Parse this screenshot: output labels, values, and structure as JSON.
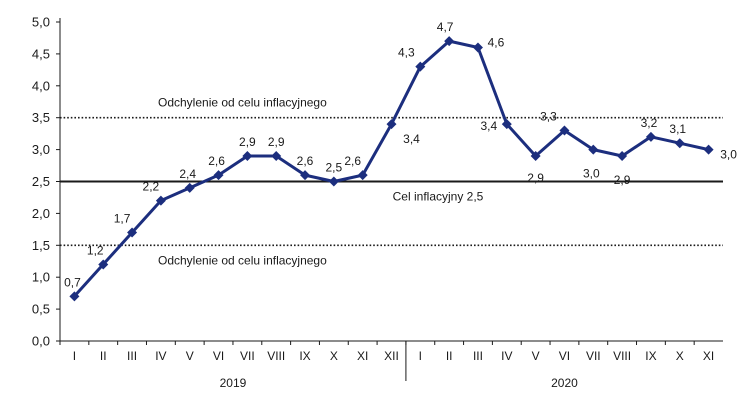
{
  "chart_data": {
    "type": "line",
    "title": "",
    "xlabel": "",
    "ylabel": "",
    "ylim": [
      0,
      5
    ],
    "y_ticks": [
      "0,0",
      "0,5",
      "1,0",
      "1,5",
      "2,0",
      "2,5",
      "3,0",
      "3,5",
      "4,0",
      "4,5",
      "5,0"
    ],
    "grid": false,
    "categories": [
      "I",
      "II",
      "III",
      "IV",
      "V",
      "VI",
      "VII",
      "VIII",
      "IX",
      "X",
      "XI",
      "XII",
      "I",
      "II",
      "III",
      "IV",
      "V",
      "VI",
      "VII",
      "VIII",
      "IX",
      "X",
      "XI"
    ],
    "years": [
      "2019",
      "2020"
    ],
    "series": [
      {
        "color": "#1c2e7e",
        "values": [
          0.7,
          1.2,
          1.7,
          2.2,
          2.4,
          2.6,
          2.9,
          2.9,
          2.6,
          2.5,
          2.6,
          3.4,
          4.3,
          4.7,
          4.6,
          3.4,
          2.9,
          3.3,
          3.0,
          2.9,
          3.2,
          3.1,
          3.0
        ],
        "labels": [
          "0,7",
          "1,2",
          "1,7",
          "2,2",
          "2,4",
          "2,6",
          "2,9",
          "2,9",
          "2,6",
          "2,5",
          "2,6",
          "3,4",
          "4,3",
          "4,7",
          "4,6",
          "3,4",
          "2,9",
          "3,3",
          "3,0",
          "2,9",
          "3,2",
          "3,1",
          "3,0"
        ]
      }
    ],
    "reference_lines": [
      {
        "value": 3.5,
        "style": "dotted",
        "label": "Odchylenie od celu inflacyjnego"
      },
      {
        "value": 2.5,
        "style": "solid",
        "label": "Cel inflacyjny 2,5"
      },
      {
        "value": 1.5,
        "style": "dotted",
        "label": "Odchylenie od celu inflacyjnego"
      }
    ]
  }
}
